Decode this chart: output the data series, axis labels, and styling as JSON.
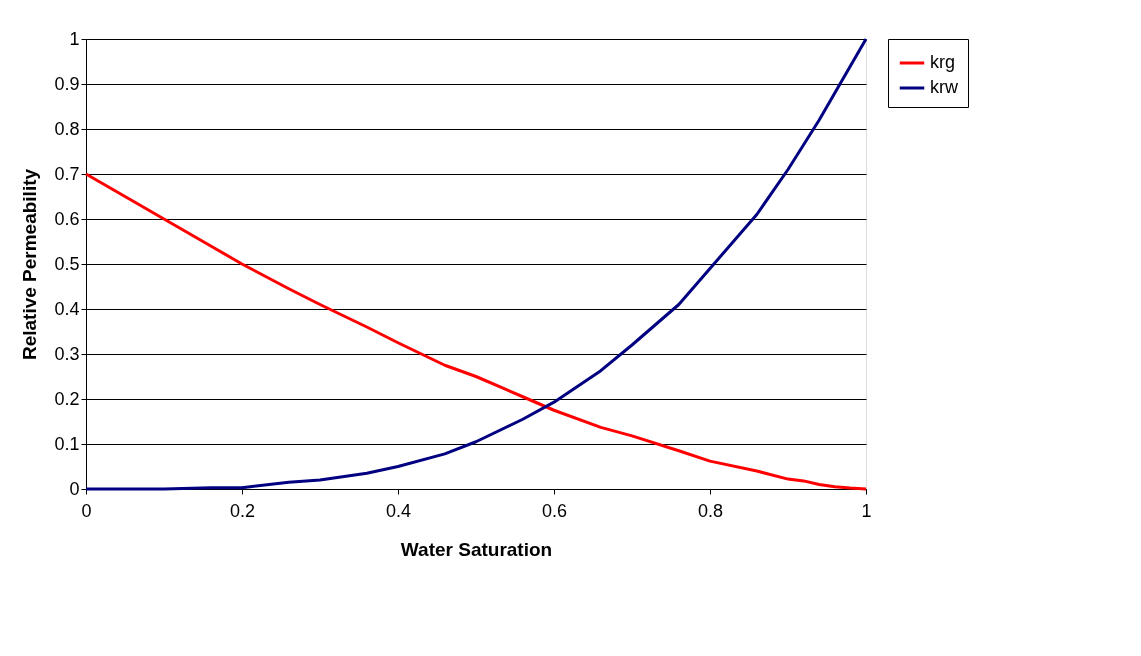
{
  "chart_data": {
    "type": "line",
    "xlabel": "Water Saturation",
    "ylabel": "Relative Permeability",
    "x": [
      0,
      0.1,
      0.16,
      0.2,
      0.26,
      0.3,
      0.36,
      0.4,
      0.46,
      0.5,
      0.56,
      0.6,
      0.66,
      0.7,
      0.76,
      0.8,
      0.86,
      0.9,
      0.92,
      0.94,
      0.96,
      0.98,
      1
    ],
    "series": [
      {
        "name": "krg",
        "color": "#ff0000",
        "values": [
          0.7,
          0.6,
          0.54,
          0.5,
          0.445,
          0.41,
          0.36,
          0.325,
          0.275,
          0.25,
          0.205,
          0.175,
          0.137,
          0.118,
          0.085,
          0.062,
          0.04,
          0.022,
          0.018,
          0.01,
          0.005,
          0.002,
          0
        ]
      },
      {
        "name": "krw",
        "color": "#000080",
        "values": [
          0,
          0,
          0.003,
          0.003,
          0.015,
          0.02,
          0.035,
          0.05,
          0.078,
          0.105,
          0.155,
          0.193,
          0.263,
          0.32,
          0.41,
          0.49,
          0.61,
          0.71,
          0.765,
          0.82,
          0.88,
          0.94,
          1.0
        ]
      }
    ],
    "xlim": [
      0,
      1
    ],
    "xticks": [
      0,
      0.2,
      0.4,
      0.6,
      0.8,
      1
    ],
    "ylim": [
      0,
      1
    ],
    "yticks": [
      0,
      0.1,
      0.2,
      0.3,
      0.4,
      0.5,
      0.6,
      0.7,
      0.8,
      0.9,
      1
    ],
    "grid": "y",
    "legend": "right",
    "marker": "none",
    "line_style": "solid"
  }
}
